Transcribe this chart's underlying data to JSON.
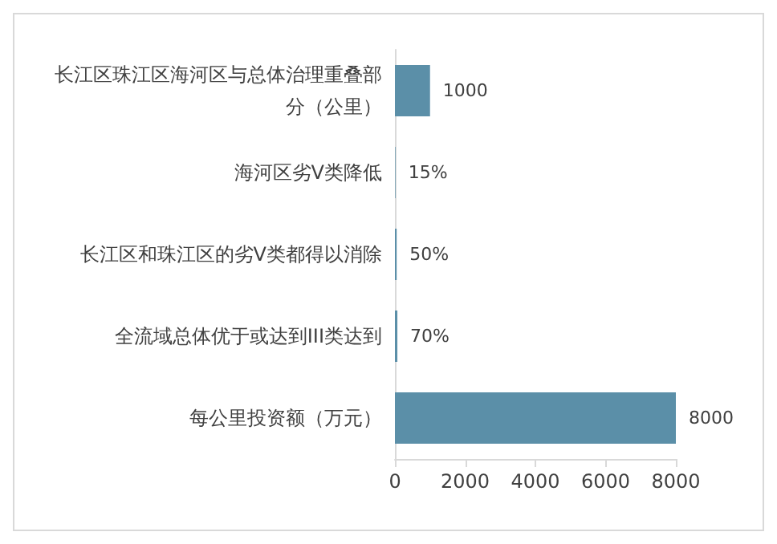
{
  "chart_data": {
    "type": "bar",
    "orientation": "horizontal",
    "categories": [
      "长江区珠江区海河区与总体治理重叠部分（公里）",
      "海河区劣V类降低",
      "长江区和珠江区的劣V类都得以消除",
      "全流域总体优于或达到III类达到",
      "每公里投资额（万元）"
    ],
    "values": [
      1000,
      15,
      50,
      70,
      8000
    ],
    "value_labels": [
      "1000",
      "15%",
      "50%",
      "70%",
      "8000"
    ],
    "color": "#5b8fa8",
    "xlim": [
      0,
      8000
    ],
    "xticks": [
      0,
      2000,
      4000,
      6000,
      8000
    ],
    "grid": false
  }
}
